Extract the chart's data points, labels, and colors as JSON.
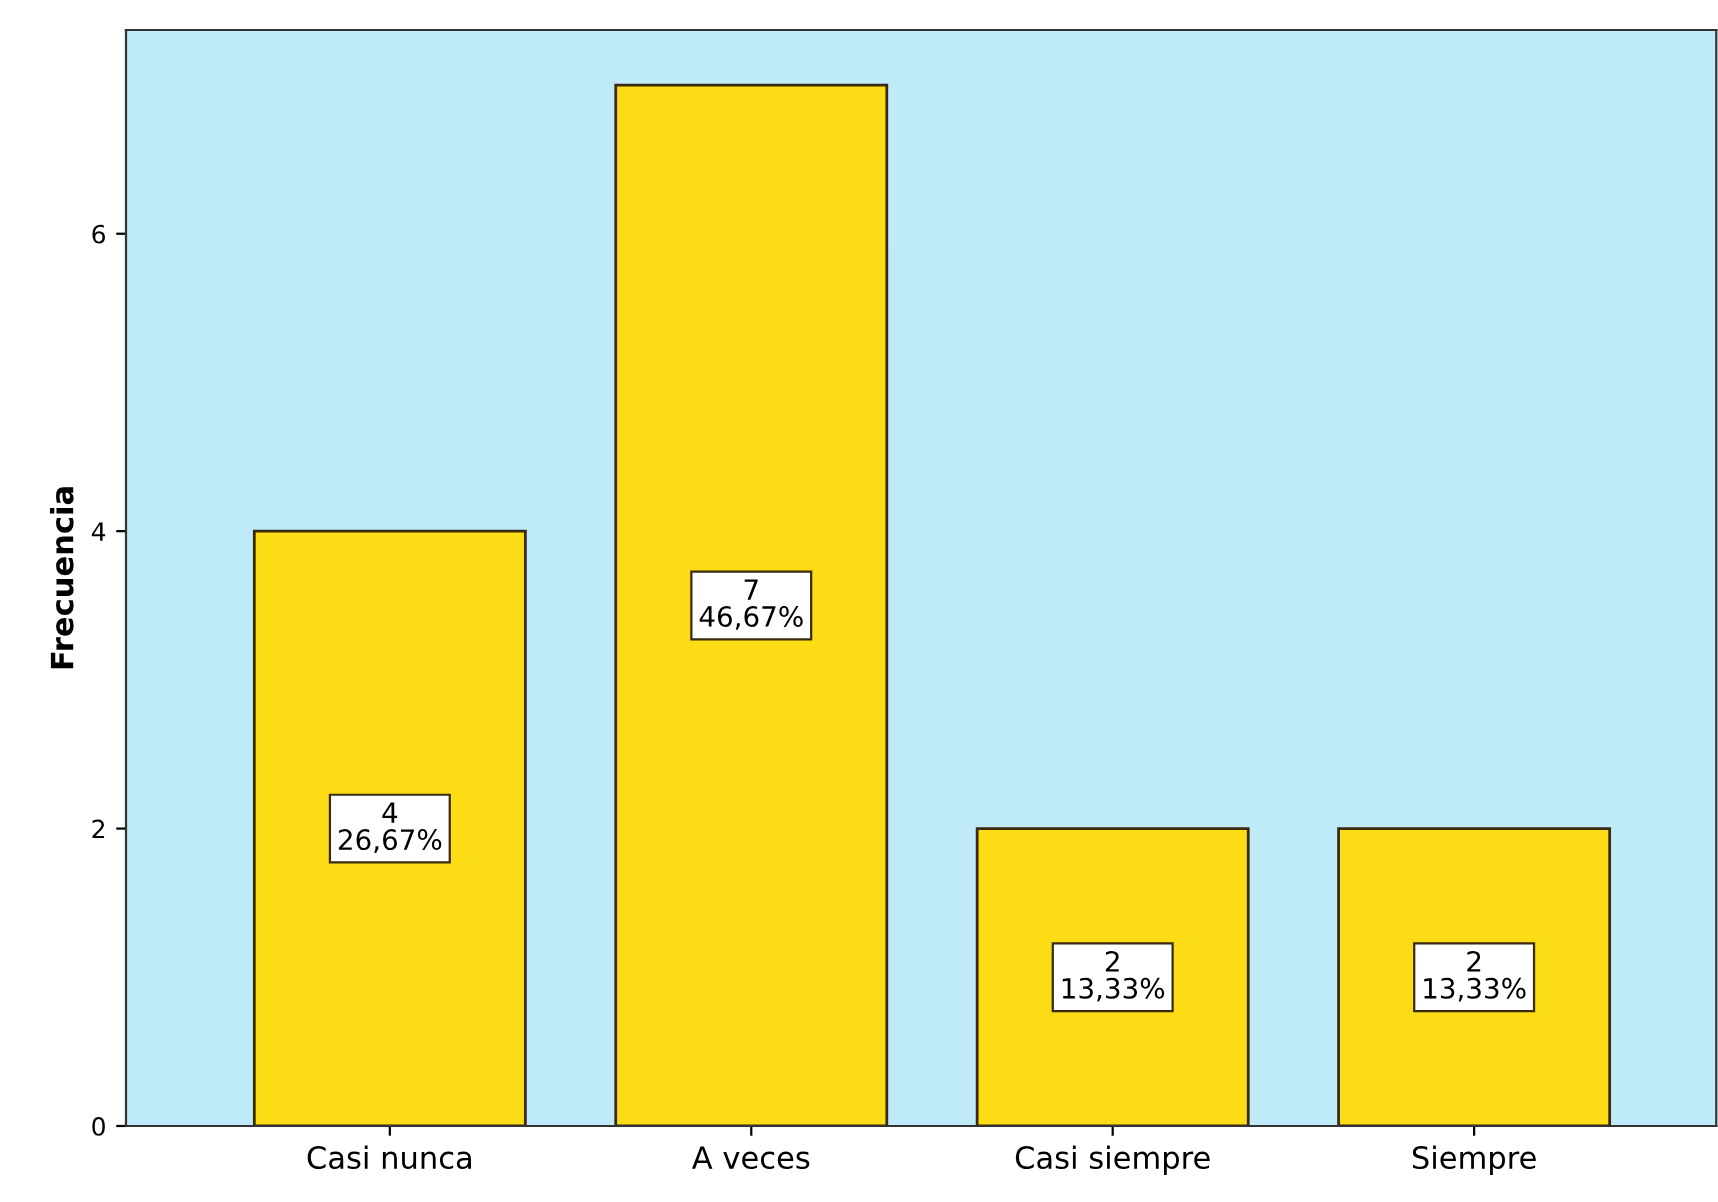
{
  "chart_data": {
    "type": "bar",
    "ylabel": "Frecuencia",
    "categories": [
      "Casi nunca",
      "A veces",
      "Casi siempre",
      "Siempre"
    ],
    "values": [
      4,
      7,
      2,
      2
    ],
    "value_labels": [
      "4\n26,67%",
      "7\n46,67%",
      "2\n13,33%",
      "2\n13,33%"
    ],
    "color": "#fcdc14",
    "ylim": [
      0,
      7.37
    ],
    "yticks": [
      0,
      2,
      4,
      6
    ],
    "grid": false,
    "legend": false
  }
}
